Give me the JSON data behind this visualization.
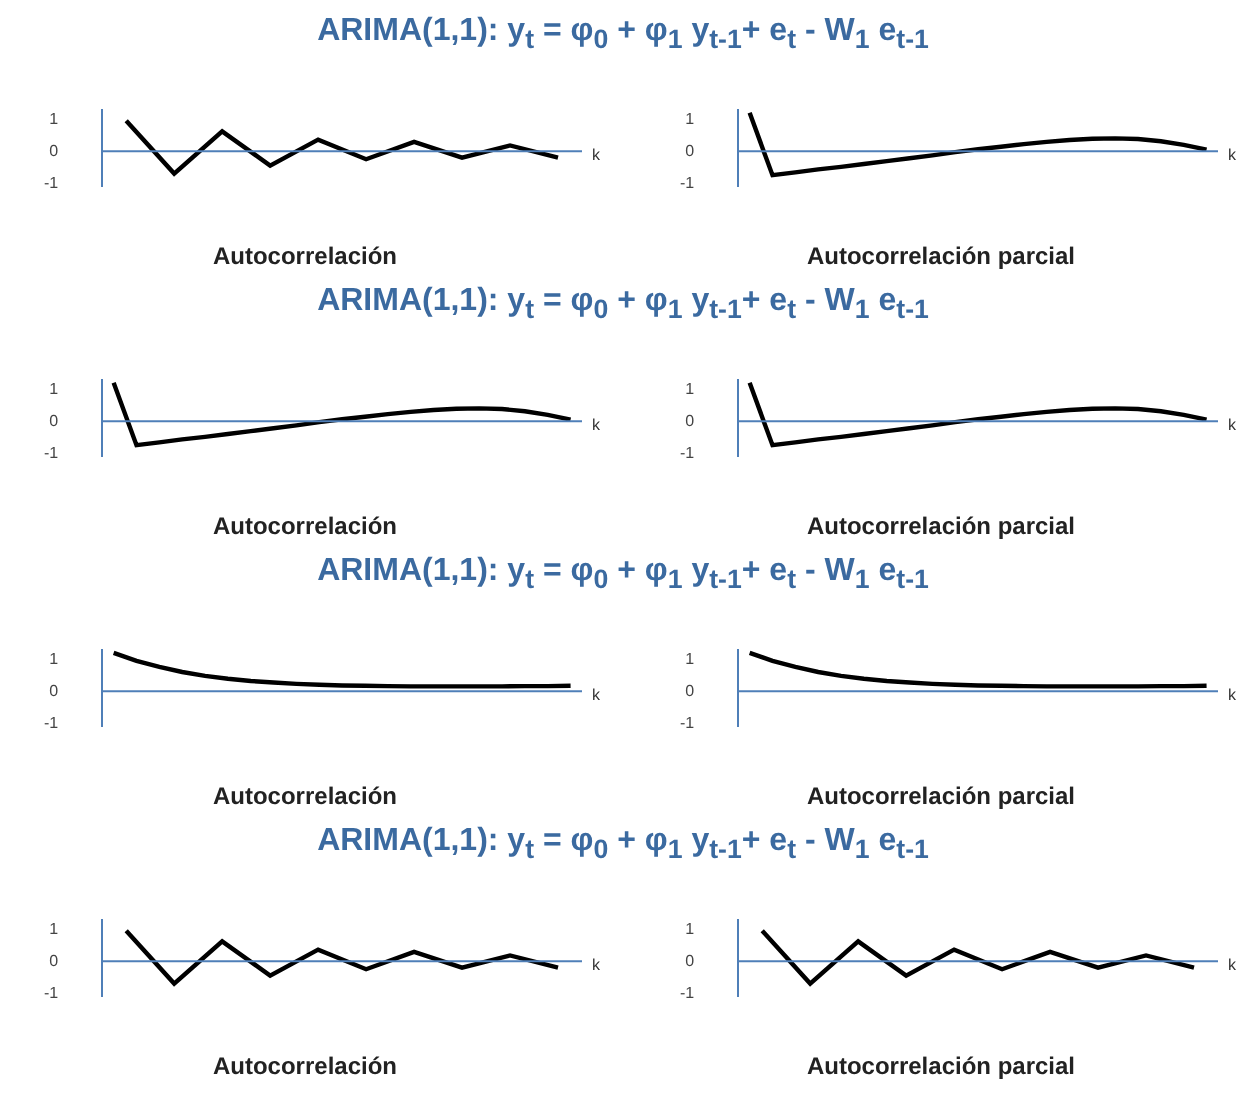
{
  "chart_data": [
    {
      "type": "other",
      "title": "ARIMA(1,1): y$_{t}$ = φ$_{0}$  + φ$_{1}$ y$_{t-1}$+ e$_{t}$ - W$_{1}$ e$_{t-1}$"
    },
    {
      "type": "line",
      "title": "Autocorrelación",
      "xlabel": "k",
      "categories": [
        null,
        null,
        null,
        null,
        null,
        null,
        null,
        null,
        null,
        null
      ],
      "values": [
        0.95,
        -0.7,
        0.62,
        -0.45,
        0.36,
        -0.25,
        0.29,
        -0.2,
        0.18,
        -0.2
      ],
      "color": "#000000",
      "ylim": [
        -1.1,
        1.3
      ],
      "yticks": [
        -1,
        0,
        1
      ],
      "tick_labels": "y",
      "grid": false,
      "ref_lines": [
        {
          "axis": "y",
          "value": 0,
          "color": "#4f7fb8"
        }
      ]
    },
    {
      "type": "line",
      "title": "Autocorrelación parcial",
      "xlabel": "k",
      "categories": [
        null,
        null,
        null,
        null,
        null,
        null,
        null,
        null,
        null,
        null,
        null,
        null,
        null,
        null,
        null,
        null,
        null,
        null,
        null,
        null,
        null
      ],
      "values": [
        1.2,
        -0.75,
        -0.66,
        -0.57,
        -0.49,
        -0.4,
        -0.31,
        -0.22,
        -0.13,
        -0.03,
        0.06,
        0.14,
        0.22,
        0.29,
        0.35,
        0.39,
        0.4,
        0.38,
        0.31,
        0.2,
        0.05
      ],
      "color": "#000000",
      "ylim": [
        -1.1,
        1.3
      ],
      "yticks": [
        -1,
        0,
        1
      ],
      "tick_labels": "y",
      "grid": false,
      "ref_lines": [
        {
          "axis": "y",
          "value": 0,
          "color": "#4f7fb8"
        }
      ]
    },
    {
      "type": "other",
      "title": "ARIMA(1,1): y$_{t}$ = φ$_{0}$  + φ$_{1}$ y$_{t-1}$+ e$_{t}$ - W$_{1}$ e$_{t-1}$"
    },
    {
      "type": "line",
      "title": "Autocorrelación",
      "xlabel": "k",
      "categories": [
        null,
        null,
        null,
        null,
        null,
        null,
        null,
        null,
        null,
        null,
        null,
        null,
        null,
        null,
        null,
        null,
        null,
        null,
        null,
        null,
        null
      ],
      "values": [
        1.2,
        -0.75,
        -0.66,
        -0.57,
        -0.49,
        -0.4,
        -0.31,
        -0.22,
        -0.13,
        -0.03,
        0.06,
        0.14,
        0.22,
        0.29,
        0.35,
        0.39,
        0.4,
        0.38,
        0.31,
        0.2,
        0.05
      ],
      "color": "#000000",
      "ylim": [
        -1.1,
        1.3
      ],
      "yticks": [
        -1,
        0,
        1
      ],
      "tick_labels": "y",
      "grid": false,
      "ref_lines": [
        {
          "axis": "y",
          "value": 0,
          "color": "#4f7fb8"
        }
      ]
    },
    {
      "type": "line",
      "title": "Autocorrelación parcial",
      "xlabel": "k",
      "categories": [
        null,
        null,
        null,
        null,
        null,
        null,
        null,
        null,
        null,
        null,
        null,
        null,
        null,
        null,
        null,
        null,
        null,
        null,
        null,
        null,
        null
      ],
      "values": [
        1.2,
        -0.75,
        -0.66,
        -0.57,
        -0.49,
        -0.4,
        -0.31,
        -0.22,
        -0.13,
        -0.03,
        0.06,
        0.14,
        0.22,
        0.29,
        0.35,
        0.39,
        0.4,
        0.38,
        0.31,
        0.2,
        0.05
      ],
      "color": "#000000",
      "ylim": [
        -1.1,
        1.3
      ],
      "yticks": [
        -1,
        0,
        1
      ],
      "tick_labels": "y",
      "grid": false,
      "ref_lines": [
        {
          "axis": "y",
          "value": 0,
          "color": "#4f7fb8"
        }
      ]
    },
    {
      "type": "other",
      "title": "ARIMA(1,1): y$_{t}$ = φ$_{0}$  + φ$_{1}$ y$_{t-1}$+ e$_{t}$ - W$_{1}$ e$_{t-1}$"
    },
    {
      "type": "line",
      "title": "Autocorrelación",
      "xlabel": "k",
      "categories": [
        null,
        null,
        null,
        null,
        null,
        null,
        null,
        null,
        null,
        null,
        null,
        null,
        null,
        null,
        null,
        null,
        null,
        null,
        null,
        null,
        null
      ],
      "values": [
        1.2,
        0.95,
        0.76,
        0.6,
        0.48,
        0.39,
        0.32,
        0.27,
        0.23,
        0.2,
        0.18,
        0.17,
        0.16,
        0.15,
        0.15,
        0.15,
        0.15,
        0.15,
        0.16,
        0.16,
        0.17
      ],
      "color": "#000000",
      "ylim": [
        -1.1,
        1.3
      ],
      "yticks": [
        -1,
        0,
        1
      ],
      "tick_labels": "y",
      "grid": false,
      "ref_lines": [
        {
          "axis": "y",
          "value": 0,
          "color": "#4f7fb8"
        }
      ]
    },
    {
      "type": "line",
      "title": "Autocorrelación parcial",
      "xlabel": "k",
      "categories": [
        null,
        null,
        null,
        null,
        null,
        null,
        null,
        null,
        null,
        null,
        null,
        null,
        null,
        null,
        null,
        null,
        null,
        null,
        null,
        null,
        null
      ],
      "values": [
        1.2,
        0.95,
        0.76,
        0.6,
        0.48,
        0.39,
        0.32,
        0.27,
        0.23,
        0.2,
        0.18,
        0.17,
        0.16,
        0.15,
        0.15,
        0.15,
        0.15,
        0.15,
        0.16,
        0.16,
        0.17
      ],
      "color": "#000000",
      "ylim": [
        -1.1,
        1.3
      ],
      "yticks": [
        -1,
        0,
        1
      ],
      "tick_labels": "y",
      "grid": false,
      "ref_lines": [
        {
          "axis": "y",
          "value": 0,
          "color": "#4f7fb8"
        }
      ]
    },
    {
      "type": "other",
      "title": "ARIMA(1,1): y$_{t}$ = φ$_{0}$  + φ$_{1}$ y$_{t-1}$+ e$_{t}$ - W$_{1}$ e$_{t-1}$"
    },
    {
      "type": "line",
      "title": "Autocorrelación",
      "xlabel": "k",
      "categories": [
        null,
        null,
        null,
        null,
        null,
        null,
        null,
        null,
        null,
        null
      ],
      "values": [
        0.95,
        -0.7,
        0.62,
        -0.45,
        0.36,
        -0.25,
        0.29,
        -0.2,
        0.18,
        -0.2
      ],
      "color": "#000000",
      "ylim": [
        -1.1,
        1.3
      ],
      "yticks": [
        -1,
        0,
        1
      ],
      "tick_labels": "y",
      "grid": false,
      "ref_lines": [
        {
          "axis": "y",
          "value": 0,
          "color": "#4f7fb8"
        }
      ]
    },
    {
      "type": "line",
      "title": "Autocorrelación parcial",
      "xlabel": "k",
      "categories": [
        null,
        null,
        null,
        null,
        null,
        null,
        null,
        null,
        null,
        null
      ],
      "values": [
        0.95,
        -0.7,
        0.62,
        -0.45,
        0.36,
        -0.25,
        0.29,
        -0.2,
        0.18,
        -0.2
      ],
      "color": "#000000",
      "ylim": [
        -1.1,
        1.3
      ],
      "yticks": [
        -1,
        0,
        1
      ],
      "tick_labels": "y",
      "grid": false,
      "ref_lines": [
        {
          "axis": "y",
          "value": 0,
          "color": "#4f7fb8"
        }
      ]
    }
  ]
}
